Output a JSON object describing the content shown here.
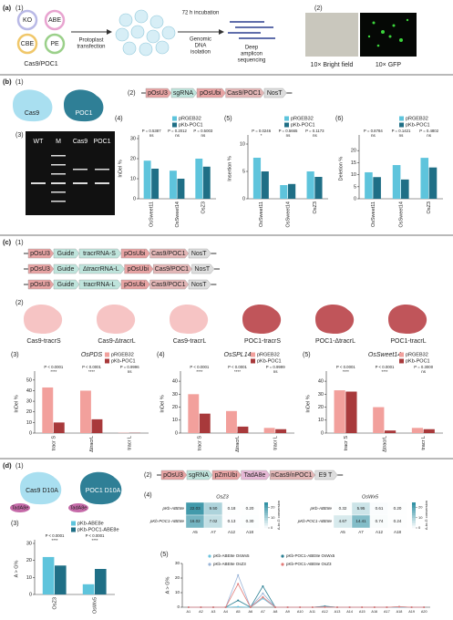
{
  "panel_a": {
    "label": "(a)",
    "step1": "(1)",
    "step2": "(2)",
    "editors": [
      "KO",
      "ABE",
      "CBE",
      "PE"
    ],
    "construct": "Cas9/POC1",
    "transfection": [
      "Protoplast",
      "transfection"
    ],
    "incubation": "72 h incubation",
    "isolation": [
      "Genomic",
      "DNA",
      "isolation"
    ],
    "sequencing": [
      "Deep",
      "amplicon",
      "sequencing"
    ],
    "bright": "10× Bright field",
    "gfp": "10× GFP"
  },
  "panel_b": {
    "label": "(b)",
    "step1": "(1)",
    "step2": "(2)",
    "step3": "(3)",
    "proteins": [
      "Cas9",
      "POC1"
    ],
    "construct": [
      "pOsU3",
      "sgRNA",
      "pOsUbi",
      "Cas9/POC1",
      "NosT"
    ],
    "gel_lanes": [
      "WT",
      "M",
      "Cas9",
      "POC1"
    ]
  },
  "panel_c": {
    "label": "(c)",
    "step1": "(1)",
    "step2": "(2)",
    "constructs": [
      [
        "pOsU3",
        "Guide",
        "tracrRNA-S",
        "pOsUbi",
        "Cas9/POC1",
        "NosT"
      ],
      [
        "pOsU3",
        "Guide",
        "ΔtracrRNA-L",
        "pOsUbi",
        "Cas9/POC1",
        "NosT"
      ],
      [
        "pOsU3",
        "Guide",
        "tracrRNA-L",
        "pOsUbi",
        "Cas9/POC1",
        "NosT"
      ]
    ],
    "proteins": [
      "Cas9-tracrS",
      "Cas9-ΔtracrL",
      "Cas9-tracrL",
      "POC1-tracrS",
      "POC1-ΔtracrL",
      "POC1-tracrL"
    ]
  },
  "panel_d": {
    "label": "(d)",
    "step1": "(1)",
    "step2": "(2)",
    "proteins": [
      "Cas9 D10A",
      "POC1 D10A"
    ],
    "deaminase": [
      "TadA8e",
      "TadA8e"
    ],
    "construct": [
      "pOsU3",
      "sgRNA",
      "pZmUbi",
      "TadA8e",
      "nCas9/nPOC1",
      "E9 T"
    ]
  },
  "chart_data": [
    {
      "type": "bar",
      "label": "(4)",
      "ylabel": "InDel %",
      "categories": [
        "OsSweet11",
        "OsSweet14",
        "OsZ3"
      ],
      "series": [
        {
          "name": "pRGEB32",
          "color": "#5ec4dc",
          "values": [
            19,
            14,
            20
          ]
        },
        {
          "name": "pKb-POC1",
          "color": "#1f6f86",
          "values": [
            15,
            10,
            16
          ]
        }
      ],
      "ylim": [
        0,
        30
      ],
      "yticks": [
        0,
        10,
        20,
        30
      ],
      "p_values": [
        "P = 0.5387",
        "P = 0.2012",
        "P = 0.5003"
      ],
      "significance": [
        "ns",
        "ns",
        "ns"
      ],
      "legend_loc": "upper right"
    },
    {
      "type": "bar",
      "label": "(5)",
      "ylabel": "Insertion %",
      "categories": [
        "OsSweet11",
        "OsSweet14",
        "OsZ3"
      ],
      "series": [
        {
          "name": "pRGEB32",
          "color": "#5ec4dc",
          "values": [
            7.5,
            2.5,
            5
          ]
        },
        {
          "name": "pKb-POC1",
          "color": "#1f6f86",
          "values": [
            5,
            2.7,
            4
          ]
        }
      ],
      "ylim": [
        0,
        11
      ],
      "yticks": [
        0,
        5,
        10
      ],
      "p_values": [
        "P = 0.0246",
        "P = 0.5665",
        "P = 0.1173"
      ],
      "significance": [
        "*",
        "ns",
        "ns"
      ],
      "legend_loc": "upper right"
    },
    {
      "type": "bar",
      "label": "(6)",
      "ylabel": "Deletion %",
      "categories": [
        "OsSweet11",
        "OsSweet14",
        "OsZ3"
      ],
      "series": [
        {
          "name": "pRGEB32",
          "color": "#5ec4dc",
          "values": [
            11,
            14,
            17
          ]
        },
        {
          "name": "pKb-POC1",
          "color": "#1f6f86",
          "values": [
            9,
            8,
            13
          ]
        }
      ],
      "ylim": [
        0,
        25
      ],
      "yticks": [
        0,
        5,
        10,
        15,
        20
      ],
      "p_values": [
        "P = 0.8784",
        "P = 0.1421",
        "P = 0.4802"
      ],
      "significance": [
        "ns",
        "ns",
        "ns"
      ],
      "legend_loc": "upper right"
    },
    {
      "type": "bar",
      "label": "(3)",
      "title": "OsPDS",
      "ylabel": "InDel %",
      "categories": [
        "tracr S",
        "ΔtracrL",
        "tracr L"
      ],
      "series": [
        {
          "name": "pRGEB32",
          "color": "#f2a09c",
          "values": [
            43,
            40,
            0.3
          ]
        },
        {
          "name": "pKb-POC1",
          "color": "#a8393b",
          "values": [
            10,
            13,
            0.2
          ]
        }
      ],
      "ylim": [
        0,
        55
      ],
      "yticks": [
        0,
        10,
        20,
        30,
        40,
        50
      ],
      "p_values": [
        "P < 0.0001",
        "P < 0.0001",
        "P = 0.9996"
      ],
      "significance": [
        "****",
        "****",
        "ns"
      ],
      "legend_loc": "upper right"
    },
    {
      "type": "bar",
      "label": "(4)",
      "title": "OsSPL14",
      "ylabel": "InDel %",
      "categories": [
        "tracr S",
        "ΔtracrL",
        "tracr L"
      ],
      "series": [
        {
          "name": "pRGEB32",
          "color": "#f2a09c",
          "values": [
            30,
            17,
            4
          ]
        },
        {
          "name": "pKb-POC1",
          "color": "#a8393b",
          "values": [
            15,
            5,
            3
          ]
        }
      ],
      "ylim": [
        0,
        45
      ],
      "yticks": [
        0,
        10,
        20,
        30,
        40
      ],
      "p_values": [
        "P < 0.0001",
        "P < 0.0001",
        "P = 0.9999"
      ],
      "significance": [
        "****",
        "****",
        "ns"
      ],
      "legend_loc": "upper right"
    },
    {
      "type": "bar",
      "label": "(5)",
      "title": "OsSweet14",
      "ylabel": "InDel %",
      "categories": [
        "tracr S",
        "ΔtracrL",
        "tracr L"
      ],
      "series": [
        {
          "name": "pRGEB32",
          "color": "#f2a09c",
          "values": [
            33,
            20,
            4
          ]
        },
        {
          "name": "pKb-POC1",
          "color": "#a8393b",
          "values": [
            32,
            2,
            3
          ]
        }
      ],
      "ylim": [
        0,
        45
      ],
      "yticks": [
        0,
        10,
        20,
        30,
        40
      ],
      "p_values": [
        "P < 0.0001",
        "P < 0.0001",
        "P = 0.3000"
      ],
      "significance": [
        "****",
        "****",
        "ns"
      ],
      "legend_loc": "upper right"
    },
    {
      "type": "bar",
      "label": "(3)",
      "ylabel": "A > G%",
      "categories": [
        "OsZ3",
        "OsWx5"
      ],
      "series": [
        {
          "name": "pKb-ABE8e",
          "color": "#5ec4dc",
          "values": [
            22,
            6
          ]
        },
        {
          "name": "pKb-POC1-ABE8e",
          "color": "#1f6f86",
          "values": [
            17,
            15
          ]
        }
      ],
      "ylim": [
        0,
        30
      ],
      "yticks": [
        0,
        10,
        20,
        30
      ],
      "p_values": [
        "P < 0.0001",
        "P < 0.0001"
      ],
      "significance": [
        "****",
        "****"
      ],
      "legend_loc": "upper right"
    },
    {
      "type": "heatmap",
      "label": "(4)",
      "title": "OsZ3",
      "rows": [
        "pKb-ABE8e",
        "pKb-POC1-ABE8e"
      ],
      "columns": [
        "A5",
        "A7",
        "A12",
        "A18"
      ],
      "values": [
        [
          22.03,
          9.5,
          0.18,
          0.2
        ],
        [
          16.02,
          7.02,
          0.13,
          0.3
        ]
      ],
      "value_labels": [
        [
          "22.03",
          "9.50",
          "0.18",
          "0.20"
        ],
        [
          "16.02",
          "7.02",
          "0.13",
          "0.30"
        ]
      ],
      "clim": [
        0,
        25
      ],
      "cticks": [
        0,
        10,
        20
      ],
      "colorbar_label": "A-to-G conversion"
    },
    {
      "type": "heatmap",
      "title": "OsWx5",
      "rows": [
        "pKb-ABE8e",
        "pKb-POC1-ABE8e"
      ],
      "columns": [
        "A5",
        "A7",
        "A12",
        "A18"
      ],
      "values": [
        [
          0.32,
          5.95,
          0.61,
          0.2
        ],
        [
          4.67,
          14.41,
          0.74,
          0.24
        ]
      ],
      "value_labels": [
        [
          "0.32",
          "5.95",
          "0.61",
          "0.20"
        ],
        [
          "4.67",
          "14.41",
          "0.74",
          "0.24"
        ]
      ],
      "clim": [
        0,
        25
      ],
      "cticks": [
        0,
        10,
        20
      ],
      "colorbar_label": "A-to-G conversion"
    },
    {
      "type": "line",
      "label": "(5)",
      "ylabel": "A > G%",
      "categories": [
        "A1",
        "A2",
        "A3",
        "A4",
        "A5",
        "A6",
        "A7",
        "A8",
        "A9",
        "A10",
        "A11",
        "A12",
        "A13",
        "A14",
        "A15",
        "A16",
        "A17",
        "A18",
        "A19",
        "A20"
      ],
      "series": [
        {
          "name": "pKb-ABE8e OsWx5",
          "color": "#6cc3de",
          "values": [
            0,
            0,
            0,
            0,
            0.3,
            0,
            6,
            0,
            0,
            0,
            0,
            0.6,
            0,
            0,
            0,
            0,
            0,
            0.2,
            0,
            0
          ]
        },
        {
          "name": "pKb-POC1-ABE8e OsWx5",
          "color": "#2a7f93",
          "values": [
            0,
            0,
            0,
            0,
            4.7,
            0,
            14.4,
            0,
            0,
            0,
            0,
            0.7,
            0,
            0,
            0,
            0,
            0,
            0.2,
            0,
            0
          ]
        },
        {
          "name": "pKb-ABE8e OsZ3",
          "color": "#9ab4d8",
          "values": [
            0,
            0,
            0,
            0,
            22,
            0,
            9.5,
            0,
            0,
            0,
            0,
            0.2,
            0,
            0,
            0,
            0,
            0,
            0.2,
            0,
            0
          ]
        },
        {
          "name": "pKb-POC1-ABE8e OsZ3",
          "color": "#e27b78",
          "values": [
            0,
            0,
            0,
            0,
            16,
            0,
            7,
            0,
            0,
            0,
            0,
            0.1,
            0,
            0,
            0,
            0,
            0,
            0.3,
            0,
            0
          ]
        }
      ],
      "ylim": [
        0,
        30
      ],
      "yticks": [
        0,
        10,
        20,
        30
      ]
    }
  ]
}
